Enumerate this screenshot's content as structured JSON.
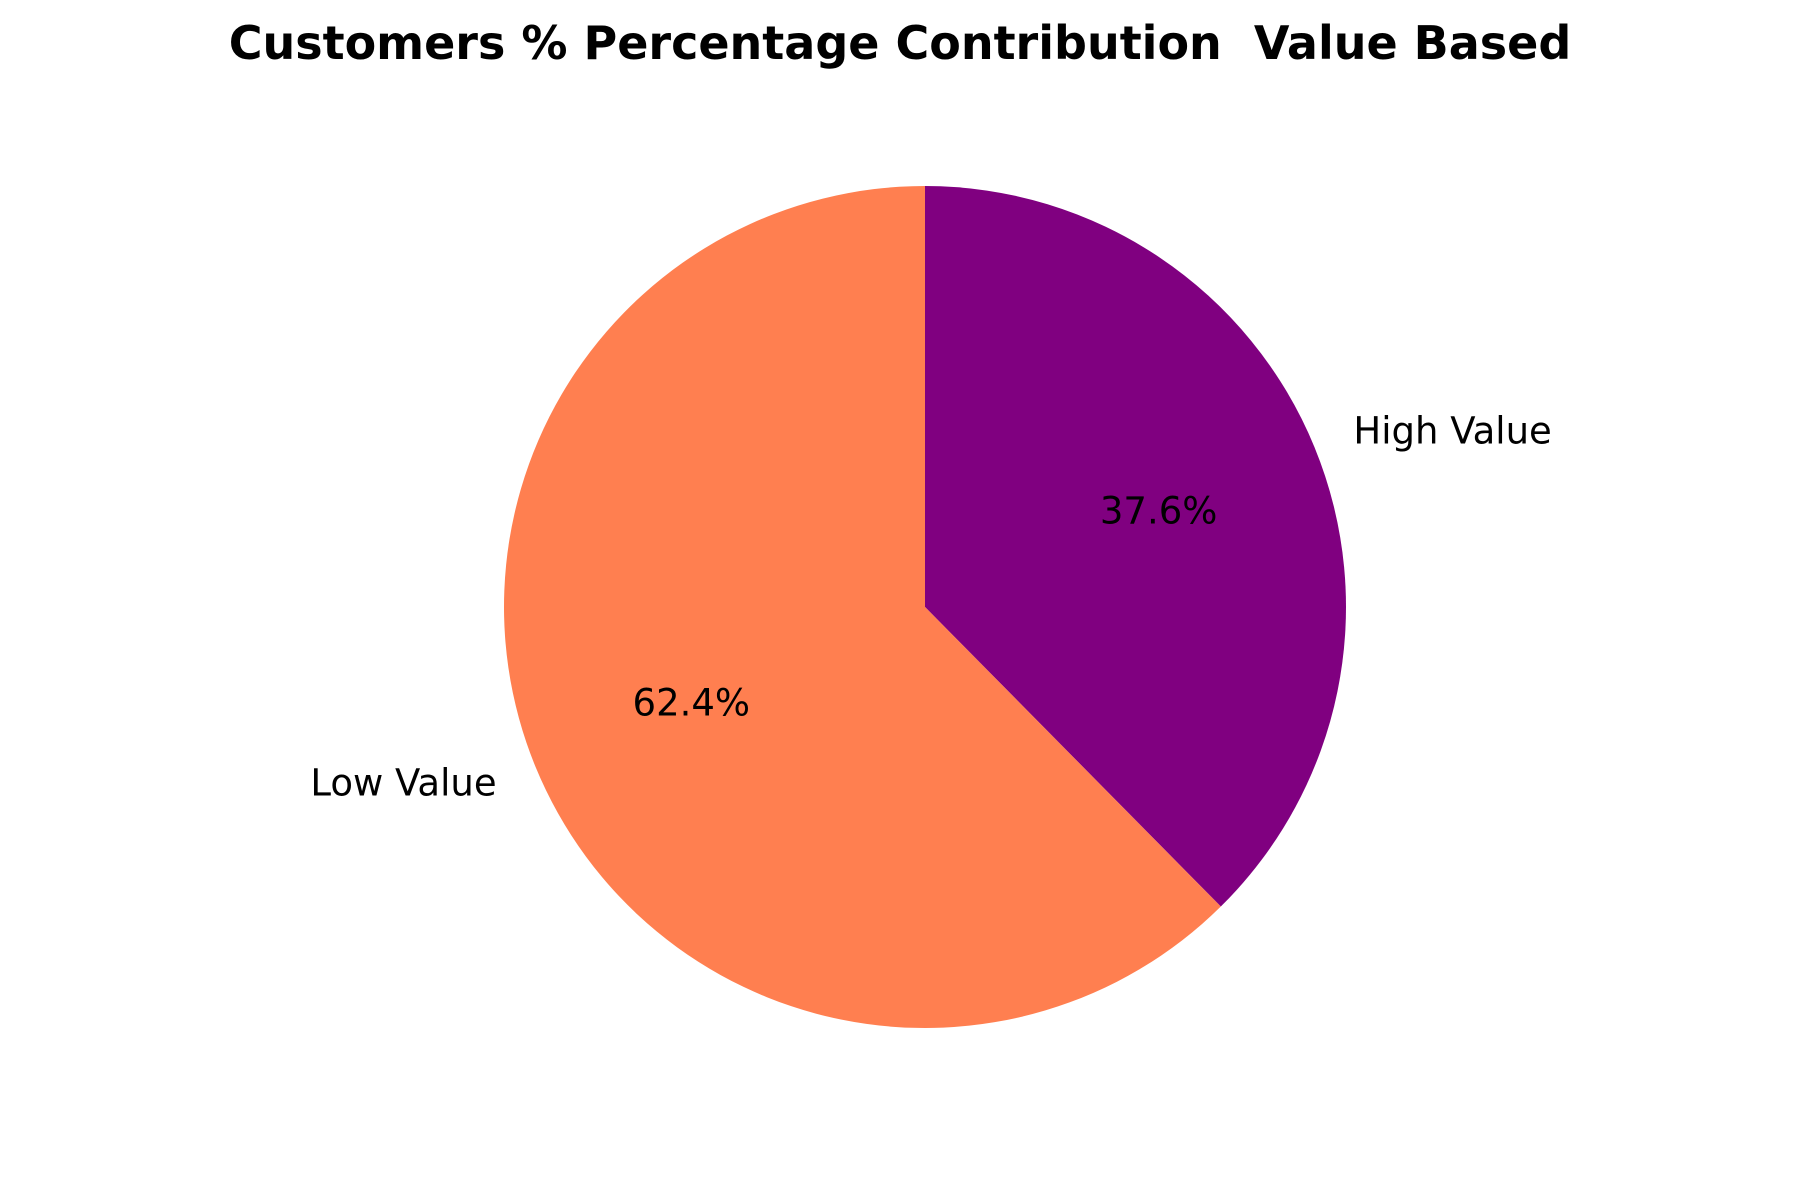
{
  "chart_data": {
    "type": "pie",
    "title": "Customers % Percentage Contribution  Value Based",
    "slices": [
      {
        "label": "High Value",
        "value": 37.6,
        "pct_label": "37.6%",
        "color": "#800080"
      },
      {
        "label": "Low Value",
        "value": 62.4,
        "pct_label": "62.4%",
        "color": "#FF7F50"
      }
    ],
    "start_angle_deg": 90,
    "direction": "clockwise",
    "legend": "none"
  }
}
